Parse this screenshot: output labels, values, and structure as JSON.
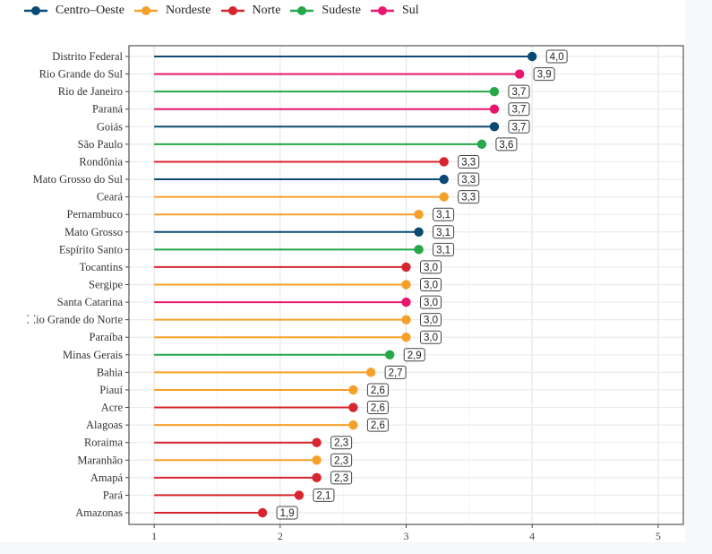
{
  "chart_data": {
    "type": "lollipop",
    "title": "",
    "xlabel": "",
    "ylabel": "",
    "xlim": [
      0.8,
      5.2
    ],
    "x_baseline": 1,
    "x_ticks": [
      1,
      2,
      3,
      4,
      5
    ],
    "x_tick_labels": [
      "1",
      "2",
      "3",
      "4",
      "5"
    ],
    "grid": true,
    "legend_position": "top-left",
    "legend": [
      {
        "name": "Centro–Oeste",
        "color": "#0b4a74"
      },
      {
        "name": "Nordeste",
        "color": "#f5a02a"
      },
      {
        "name": "Norte",
        "color": "#d7262d"
      },
      {
        "name": "Sudeste",
        "color": "#27a64a"
      },
      {
        "name": "Sul",
        "color": "#e8166e"
      }
    ],
    "points": [
      {
        "state": "Distrito Federal",
        "region": "Centro–Oeste",
        "value": 4.0,
        "label": "4,0"
      },
      {
        "state": "Rio Grande do Sul",
        "region": "Sul",
        "value": 3.9,
        "label": "3,9"
      },
      {
        "state": "Rio de Janeiro",
        "region": "Sudeste",
        "value": 3.7,
        "label": "3,7"
      },
      {
        "state": "Paraná",
        "region": "Sul",
        "value": 3.7,
        "label": "3,7"
      },
      {
        "state": "Goiás",
        "region": "Centro–Oeste",
        "value": 3.7,
        "label": "3,7"
      },
      {
        "state": "São Paulo",
        "region": "Sudeste",
        "value": 3.6,
        "label": "3,6"
      },
      {
        "state": "Rondônia",
        "region": "Norte",
        "value": 3.3,
        "label": "3,3"
      },
      {
        "state": "Mato Grosso do Sul",
        "region": "Centro–Oeste",
        "value": 3.3,
        "label": "3,3"
      },
      {
        "state": "Ceará",
        "region": "Nordeste",
        "value": 3.3,
        "label": "3,3"
      },
      {
        "state": "Pernambuco",
        "region": "Nordeste",
        "value": 3.1,
        "label": "3,1"
      },
      {
        "state": "Mato Grosso",
        "region": "Centro–Oeste",
        "value": 3.1,
        "label": "3,1"
      },
      {
        "state": "Espírito Santo",
        "region": "Sudeste",
        "value": 3.1,
        "label": "3,1"
      },
      {
        "state": "Tocantins",
        "region": "Norte",
        "value": 3.0,
        "label": "3,0"
      },
      {
        "state": "Sergipe",
        "region": "Nordeste",
        "value": 3.0,
        "label": "3,0"
      },
      {
        "state": "Santa Catarina",
        "region": "Sul",
        "value": 3.0,
        "label": "3,0"
      },
      {
        "state": "⸬io Grande do Norte",
        "region": "Nordeste",
        "value": 3.0,
        "label": "3,0"
      },
      {
        "state": "Paraíba",
        "region": "Nordeste",
        "value": 3.0,
        "label": "3,0"
      },
      {
        "state": "Minas Gerais",
        "region": "Sudeste",
        "value": 2.87,
        "label": "2,9"
      },
      {
        "state": "Bahia",
        "region": "Nordeste",
        "value": 2.72,
        "label": "2,7"
      },
      {
        "state": "Piauí",
        "region": "Nordeste",
        "value": 2.58,
        "label": "2,6"
      },
      {
        "state": "Acre",
        "region": "Norte",
        "value": 2.58,
        "label": "2,6"
      },
      {
        "state": "Alagoas",
        "region": "Nordeste",
        "value": 2.58,
        "label": "2,6"
      },
      {
        "state": "Roraima",
        "region": "Norte",
        "value": 2.29,
        "label": "2,3"
      },
      {
        "state": "Maranhão",
        "region": "Nordeste",
        "value": 2.29,
        "label": "2,3"
      },
      {
        "state": "Amapá",
        "region": "Norte",
        "value": 2.29,
        "label": "2,3"
      },
      {
        "state": "Pará",
        "region": "Norte",
        "value": 2.15,
        "label": "2,1"
      },
      {
        "state": "Amazonas",
        "region": "Norte",
        "value": 1.86,
        "label": "1,9"
      }
    ]
  }
}
